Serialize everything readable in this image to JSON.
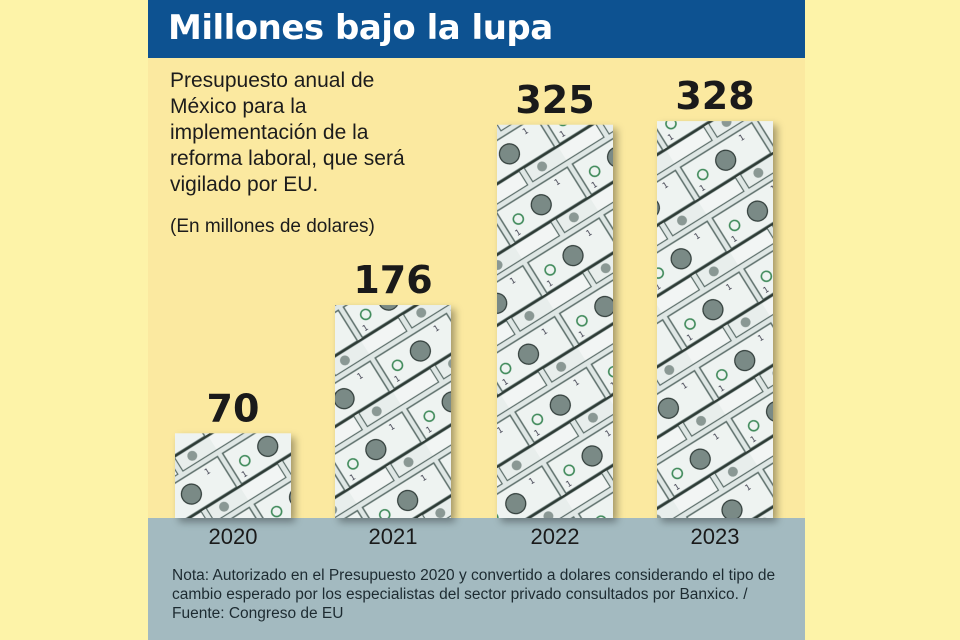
{
  "header": {
    "title": "Millones bajo la lupa"
  },
  "intro": {
    "subtitle": "Presupuesto anual de México para la implementación de la reforma laboral, que será vigilado por EU.",
    "units": "(En millones de dolares)"
  },
  "footer": {
    "note": "Nota: Autorizado en el Presupuesto 2020 y convertido a dolares considerando el tipo de cambio esperado por los especialistas del sector privado consultados por Banxico. / Fuente: Congreso de EU"
  },
  "colors": {
    "header_bg": "#0d5291",
    "panel_bg": "#fbe9a0",
    "base_band": "#a3bac0",
    "bill_texture": "#dfe7e5"
  },
  "chart_data": {
    "type": "bar",
    "title": "Millones bajo la lupa",
    "categories": [
      "2020",
      "2021",
      "2022",
      "2023"
    ],
    "values": [
      70,
      176,
      325,
      328
    ],
    "ylabel": "(En millones de dolares)",
    "grid": false,
    "bar_texture": "dollar-bills"
  }
}
